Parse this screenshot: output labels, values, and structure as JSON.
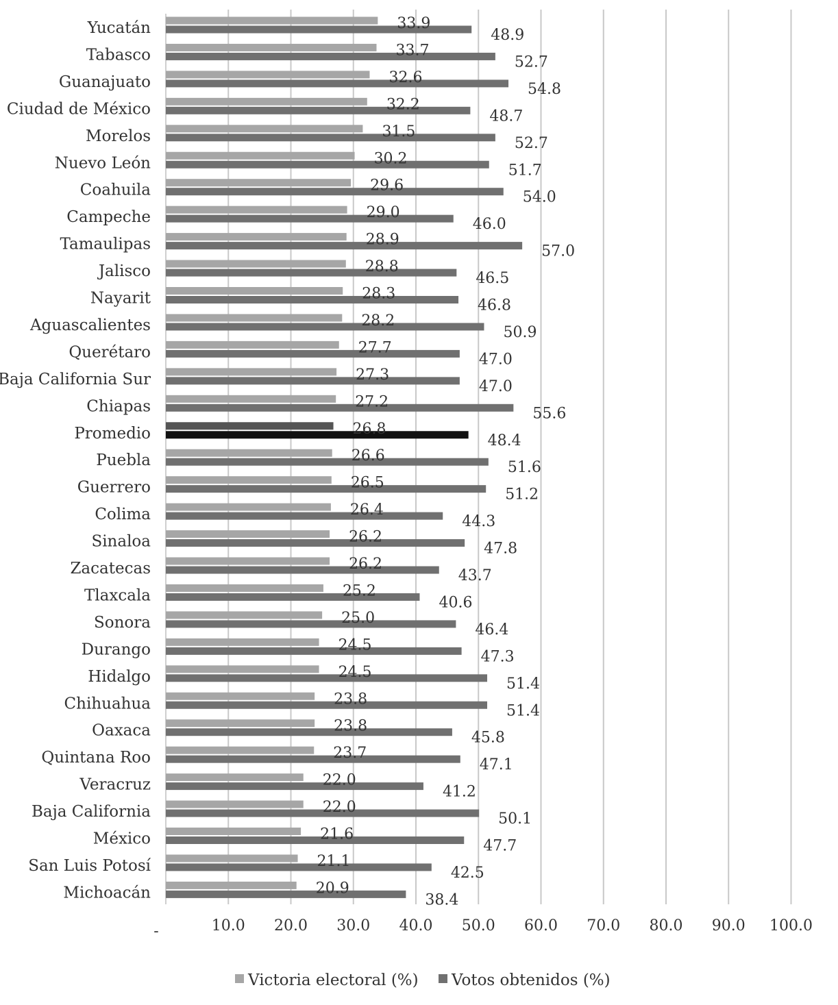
{
  "chart_data": {
    "type": "bar",
    "orientation": "horizontal",
    "categories": [
      "Yucatán",
      "Tabasco",
      "Guanajuato",
      "Ciudad de México",
      "Morelos",
      "Nuevo León",
      "Coahuila",
      "Campeche",
      "Tamaulipas",
      "Jalisco",
      "Nayarit",
      "Aguascalientes",
      "Querétaro",
      "Baja California Sur",
      "Chiapas",
      "Promedio",
      "Puebla",
      "Guerrero",
      "Colima",
      "Sinaloa",
      "Zacatecas",
      "Tlaxcala",
      "Sonora",
      "Durango",
      "Hidalgo",
      "Chihuahua",
      "Oaxaca",
      "Quintana Roo",
      "Veracruz",
      "Baja California",
      "México",
      "San Luis Potosí",
      "Michoacán"
    ],
    "series": [
      {
        "name": "Victoria electoral (%)",
        "color": "#a6a6a6",
        "values": [
          33.9,
          33.7,
          32.6,
          32.2,
          31.5,
          30.2,
          29.6,
          29.0,
          28.9,
          28.8,
          28.3,
          28.2,
          27.7,
          27.3,
          27.2,
          26.8,
          26.6,
          26.5,
          26.4,
          26.2,
          26.2,
          25.2,
          25.0,
          24.5,
          24.5,
          23.8,
          23.8,
          23.7,
          22.0,
          22.0,
          21.6,
          21.1,
          20.9
        ]
      },
      {
        "name": "Votos obtenidos (%)",
        "color": "#707070",
        "values": [
          48.9,
          52.7,
          54.8,
          48.7,
          52.7,
          51.7,
          54.0,
          46.0,
          57.0,
          46.5,
          46.8,
          50.9,
          47.0,
          47.0,
          55.6,
          48.4,
          51.6,
          51.2,
          44.3,
          47.8,
          43.7,
          40.6,
          46.4,
          47.3,
          51.4,
          51.4,
          45.8,
          47.1,
          41.2,
          50.1,
          47.7,
          42.5,
          38.4
        ]
      }
    ],
    "value_labels": {
      "series_0": [
        "33.9",
        "33.7",
        "32.6",
        "32.2",
        "31.5",
        "30.2",
        "29.6",
        "29.0",
        "28.9",
        "28.8",
        "28.3",
        "28.2",
        "27.7",
        "27.3",
        "27.2",
        "26.8",
        "26.6",
        "26.5",
        "26.4",
        "26.2",
        "26.2",
        "25.2",
        "25.0",
        "24.5",
        "24.5",
        "23.8",
        "23.8",
        "23.7",
        "22.0",
        "22.0",
        "21.6",
        "21.1",
        "20.9"
      ],
      "series_1": [
        "48.9",
        "52.7",
        "54.8",
        "48.7",
        "52.7",
        "51.7",
        "54.0",
        "46.0",
        "57.0",
        "46.5",
        "46.8",
        "50.9",
        "47.0",
        "47.0",
        "55.6",
        "48.4",
        "51.6",
        "51.2",
        "44.3",
        "47.8",
        "43.7",
        "40.6",
        "46.4",
        "47.3",
        "51.4",
        "51.4",
        "45.8",
        "47.1",
        "41.2",
        "50.1",
        "47.7",
        "42.5",
        "38.4"
      ]
    },
    "highlight_category": "Promedio",
    "highlight_color": "#111111",
    "x_ticks": [
      0,
      10,
      20,
      30,
      40,
      50,
      60,
      70,
      80,
      90,
      100
    ],
    "x_tick_labels": [
      "-",
      "10.0",
      "20.0",
      "30.0",
      "40.0",
      "50.0",
      "60.0",
      "70.0",
      "80.0",
      "90.0",
      "100.0"
    ],
    "xlim": [
      0,
      100
    ],
    "grid": true,
    "grid_color": "#c8c8c8",
    "title": "",
    "xlabel": "",
    "ylabel": "",
    "legend_position": "bottom"
  }
}
